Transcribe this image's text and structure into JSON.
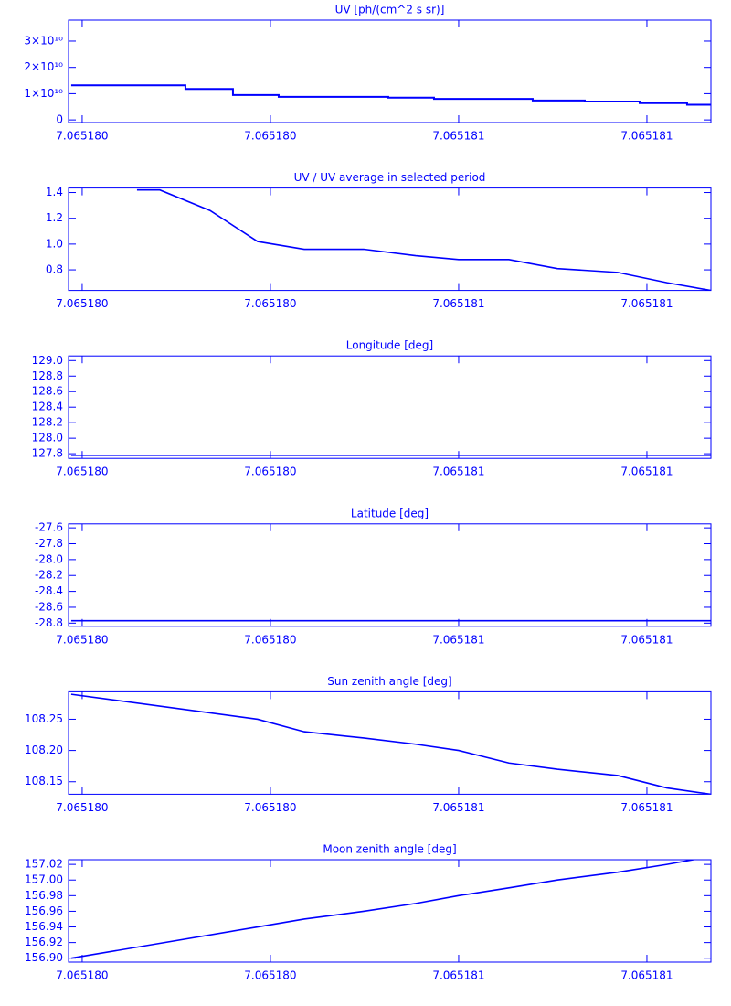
{
  "chart_data": [
    {
      "type": "line",
      "step": true,
      "title": "UV [ph/(cm^2 s sr)]",
      "color": "#0000ff",
      "x": [
        7.0651799767,
        7.0651802194,
        7.0651803204,
        7.0651804175,
        7.0651806505,
        7.0651807476,
        7.0651809573,
        7.065181068,
        7.0651811845,
        7.0651812854,
        7.0651813359
      ],
      "values": [
        13200000000,
        11800000000,
        9500000000,
        8800000000,
        8500000000,
        8000000000,
        7400000000,
        7000000000,
        6400000000,
        5800000000,
        5800000000
      ],
      "xlim": [
        7.065179971,
        7.065181336
      ],
      "xticks": [
        {
          "value": 7.06518,
          "label": "7.065180"
        },
        {
          "value": 7.0651804,
          "label": "7.065180"
        },
        {
          "value": 7.0651808,
          "label": "7.065181"
        },
        {
          "value": 7.0651812,
          "label": "7.065181"
        }
      ],
      "ylim": [
        -1000000000,
        38000000000
      ],
      "yticks": [
        0,
        {
          "value": 10000000000,
          "label": "1×10¹⁰"
        },
        {
          "value": 20000000000,
          "label": "2×10¹⁰"
        },
        {
          "value": 30000000000,
          "label": "3×10¹⁰"
        }
      ]
    },
    {
      "type": "line",
      "title": "UV / UV average in selected period",
      "color": "#0000ff",
      "x": [
        7.0651801165,
        7.065180165,
        7.0651802718,
        7.0651803728,
        7.0651804718,
        7.0651805981,
        7.0651807087,
        7.0651808,
        7.0651809068,
        7.0651810097,
        7.0651811379,
        7.0651812427,
        7.0651813359
      ],
      "values": [
        1.42,
        1.42,
        1.26,
        1.02,
        0.96,
        0.96,
        0.91,
        0.88,
        0.88,
        0.81,
        0.78,
        0.7,
        0.64
      ],
      "xlim": [
        7.065179971,
        7.065181336
      ],
      "xticks": [
        {
          "value": 7.06518,
          "label": "7.065180"
        },
        {
          "value": 7.0651804,
          "label": "7.065180"
        },
        {
          "value": 7.0651808,
          "label": "7.065181"
        },
        {
          "value": 7.0651812,
          "label": "7.065181"
        }
      ],
      "ylim": [
        0.64,
        1.435
      ],
      "yticks": [
        0.8,
        {
          "value": 1.0,
          "label": "1.0"
        },
        1.2,
        1.4
      ]
    },
    {
      "type": "line",
      "title": "Longitude [deg]",
      "color": "#0000ff",
      "x": [
        7.0651799767,
        7.0651813359
      ],
      "values": [
        127.78,
        127.78
      ],
      "xlim": [
        7.065179971,
        7.065181336
      ],
      "xticks": [
        {
          "value": 7.06518,
          "label": "7.065180"
        },
        {
          "value": 7.0651804,
          "label": "7.065180"
        },
        {
          "value": 7.0651808,
          "label": "7.065181"
        },
        {
          "value": 7.0651812,
          "label": "7.065181"
        }
      ],
      "ylim": [
        127.74,
        129.06
      ],
      "yticks": [
        127.8,
        {
          "value": 128,
          "label": "128.0"
        },
        128.2,
        128.4,
        128.6,
        128.8,
        {
          "value": 129,
          "label": "129.0"
        }
      ]
    },
    {
      "type": "line",
      "title": "Latitude [deg]",
      "color": "#0000ff",
      "x": [
        7.0651799767,
        7.0651813359
      ],
      "values": [
        -28.77,
        -28.77
      ],
      "xlim": [
        7.065179971,
        7.065181336
      ],
      "xticks": [
        {
          "value": 7.06518,
          "label": "7.065180"
        },
        {
          "value": 7.0651804,
          "label": "7.065180"
        },
        {
          "value": 7.0651808,
          "label": "7.065181"
        },
        {
          "value": 7.0651812,
          "label": "7.065181"
        }
      ],
      "ylim": [
        -28.84,
        -27.55
      ],
      "yticks": [
        -28.8,
        -28.6,
        -28.4,
        -28.2,
        {
          "value": -28,
          "label": "-28.0"
        },
        -27.8,
        -27.6
      ]
    },
    {
      "type": "line",
      "title": "Sun zenith angle [deg]",
      "color": "#0000ff",
      "x": [
        7.0651799767,
        7.0651803728,
        7.0651804718,
        7.0651805981,
        7.0651807087,
        7.0651808,
        7.0651809068,
        7.0651810097,
        7.0651811379,
        7.0651812427,
        7.0651813359
      ],
      "values": [
        108.29,
        108.25,
        108.23,
        108.22,
        108.21,
        108.2,
        108.18,
        108.17,
        108.16,
        108.14,
        108.13
      ],
      "xlim": [
        7.065179971,
        7.065181336
      ],
      "xticks": [
        {
          "value": 7.06518,
          "label": "7.065180"
        },
        {
          "value": 7.0651804,
          "label": "7.065180"
        },
        {
          "value": 7.0651808,
          "label": "7.065181"
        },
        {
          "value": 7.0651812,
          "label": "7.065181"
        }
      ],
      "ylim": [
        108.13,
        108.294
      ],
      "yticks": [
        108.15,
        {
          "value": 108.2,
          "label": "108.20"
        },
        108.25
      ]
    },
    {
      "type": "line",
      "title": "Moon zenith angle [deg]",
      "color": "#0000ff",
      "x": [
        7.0651799767,
        7.0651803728,
        7.0651804718,
        7.0651805981,
        7.0651807087,
        7.0651808,
        7.0651809068,
        7.0651810097,
        7.0651811379,
        7.0651812427,
        7.0651813359
      ],
      "values": [
        156.9,
        156.94,
        156.95,
        156.96,
        156.97,
        156.98,
        156.99,
        157.0,
        157.01,
        157.02,
        157.03
      ],
      "xlim": [
        7.065179971,
        7.065181336
      ],
      "xticks": [
        {
          "value": 7.06518,
          "label": "7.065180"
        },
        {
          "value": 7.0651804,
          "label": "7.065180"
        },
        {
          "value": 7.0651808,
          "label": "7.065181"
        },
        {
          "value": 7.0651812,
          "label": "7.065181"
        }
      ],
      "ylim": [
        156.895,
        157.026
      ],
      "yticks": [
        {
          "value": 156.9,
          "label": "156.90"
        },
        156.92,
        156.94,
        156.96,
        156.98,
        {
          "value": 157,
          "label": "157.00"
        },
        157.02
      ]
    }
  ]
}
